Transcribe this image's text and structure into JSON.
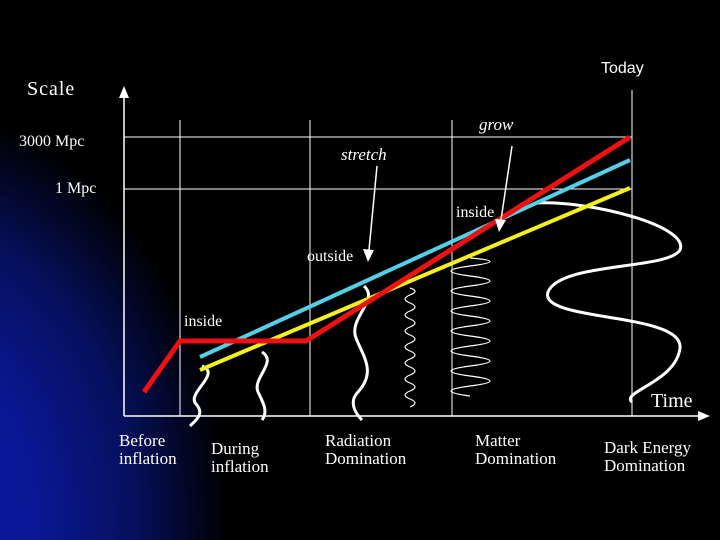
{
  "axes": {
    "y_label": "Scale",
    "x_label": "Time",
    "tick_3000": "3000 Mpc",
    "tick_1": "1 Mpc",
    "today": "Today"
  },
  "annotations": {
    "grow": "grow",
    "stretch": "stretch",
    "inside_top": "inside",
    "outside": "outside",
    "inside_left": "inside"
  },
  "epochs": [
    {
      "line1": "Before",
      "line2": "inflation"
    },
    {
      "line1": "During",
      "line2": "inflation"
    },
    {
      "line1": "Radiation",
      "line2": "Domination"
    },
    {
      "line1": "Matter",
      "line2": "Domination"
    },
    {
      "line1": "Dark Energy",
      "line2": "Domination"
    }
  ],
  "colors": {
    "hubble_red": "#ee1111",
    "mode_cyan": "#55cfe6",
    "mode_yellow": "#f4ef1e",
    "background_blue": "#0b1aa6"
  }
}
